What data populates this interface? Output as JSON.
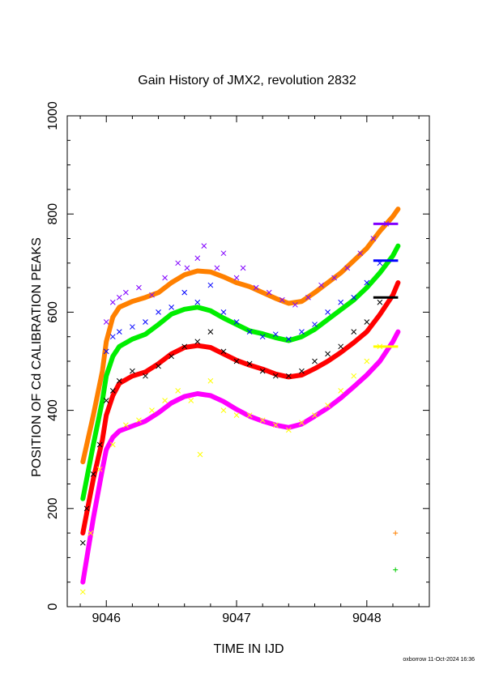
{
  "chart_data": {
    "type": "scatter",
    "title": "Gain History of JMX2, revolution 2832",
    "xlabel": "TIME IN IJD",
    "ylabel": "POSITION OF Cd CALIBRATION PEAKS",
    "xlim": [
      9045.7,
      9048.48
    ],
    "ylim": [
      0,
      1000
    ],
    "xticks": [
      9046,
      9047,
      9048
    ],
    "yticks": [
      0,
      200,
      400,
      600,
      800,
      1000
    ],
    "grid": false,
    "footer": "oxborrow 11-Oct-2024 16:36",
    "series": [
      {
        "color": "#ff8000",
        "marker": "line",
        "points": [
          [
            9045.82,
            295
          ],
          [
            9045.9,
            390
          ],
          [
            9045.97,
            480
          ],
          [
            9046.0,
            540
          ],
          [
            9046.05,
            590
          ],
          [
            9046.1,
            610
          ],
          [
            9046.2,
            622
          ],
          [
            9046.3,
            630
          ],
          [
            9046.4,
            640
          ],
          [
            9046.5,
            660
          ],
          [
            9046.6,
            676
          ],
          [
            9046.7,
            684
          ],
          [
            9046.8,
            682
          ],
          [
            9046.9,
            672
          ],
          [
            9047.0,
            660
          ],
          [
            9047.1,
            652
          ],
          [
            9047.2,
            640
          ],
          [
            9047.3,
            628
          ],
          [
            9047.4,
            618
          ],
          [
            9047.5,
            622
          ],
          [
            9047.6,
            640
          ],
          [
            9047.7,
            660
          ],
          [
            9047.8,
            680
          ],
          [
            9047.9,
            705
          ],
          [
            9048.0,
            730
          ],
          [
            9048.1,
            765
          ],
          [
            9048.2,
            795
          ],
          [
            9048.24,
            810
          ]
        ]
      },
      {
        "color": "#00ee00",
        "marker": "line",
        "points": [
          [
            9045.82,
            220
          ],
          [
            9045.9,
            330
          ],
          [
            9045.97,
            420
          ],
          [
            9046.0,
            470
          ],
          [
            9046.05,
            510
          ],
          [
            9046.1,
            530
          ],
          [
            9046.2,
            545
          ],
          [
            9046.3,
            555
          ],
          [
            9046.4,
            575
          ],
          [
            9046.5,
            596
          ],
          [
            9046.6,
            606
          ],
          [
            9046.7,
            610
          ],
          [
            9046.8,
            603
          ],
          [
            9046.9,
            588
          ],
          [
            9047.0,
            575
          ],
          [
            9047.1,
            562
          ],
          [
            9047.2,
            556
          ],
          [
            9047.3,
            548
          ],
          [
            9047.4,
            542
          ],
          [
            9047.5,
            550
          ],
          [
            9047.6,
            565
          ],
          [
            9047.7,
            585
          ],
          [
            9047.8,
            605
          ],
          [
            9047.9,
            625
          ],
          [
            9048.0,
            650
          ],
          [
            9048.1,
            680
          ],
          [
            9048.2,
            715
          ],
          [
            9048.24,
            735
          ]
        ]
      },
      {
        "color": "#ff0000",
        "marker": "line",
        "points": [
          [
            9045.82,
            150
          ],
          [
            9045.9,
            260
          ],
          [
            9045.97,
            340
          ],
          [
            9046.0,
            390
          ],
          [
            9046.05,
            430
          ],
          [
            9046.1,
            455
          ],
          [
            9046.2,
            470
          ],
          [
            9046.3,
            478
          ],
          [
            9046.4,
            495
          ],
          [
            9046.5,
            515
          ],
          [
            9046.6,
            528
          ],
          [
            9046.7,
            532
          ],
          [
            9046.8,
            528
          ],
          [
            9046.9,
            515
          ],
          [
            9047.0,
            502
          ],
          [
            9047.1,
            492
          ],
          [
            9047.2,
            484
          ],
          [
            9047.3,
            474
          ],
          [
            9047.4,
            468
          ],
          [
            9047.5,
            472
          ],
          [
            9047.6,
            485
          ],
          [
            9047.7,
            500
          ],
          [
            9047.8,
            518
          ],
          [
            9047.9,
            538
          ],
          [
            9048.0,
            560
          ],
          [
            9048.1,
            595
          ],
          [
            9048.2,
            635
          ],
          [
            9048.24,
            660
          ]
        ]
      },
      {
        "color": "#ff00ff",
        "marker": "line",
        "points": [
          [
            9045.82,
            50
          ],
          [
            9045.9,
            180
          ],
          [
            9045.97,
            280
          ],
          [
            9046.0,
            320
          ],
          [
            9046.05,
            345
          ],
          [
            9046.1,
            358
          ],
          [
            9046.2,
            368
          ],
          [
            9046.3,
            378
          ],
          [
            9046.4,
            395
          ],
          [
            9046.5,
            415
          ],
          [
            9046.6,
            428
          ],
          [
            9046.7,
            434
          ],
          [
            9046.8,
            430
          ],
          [
            9046.9,
            418
          ],
          [
            9047.0,
            402
          ],
          [
            9047.1,
            388
          ],
          [
            9047.2,
            378
          ],
          [
            9047.3,
            370
          ],
          [
            9047.4,
            365
          ],
          [
            9047.5,
            372
          ],
          [
            9047.6,
            388
          ],
          [
            9047.7,
            405
          ],
          [
            9047.8,
            425
          ],
          [
            9047.9,
            448
          ],
          [
            9048.0,
            472
          ],
          [
            9048.1,
            500
          ],
          [
            9048.2,
            540
          ],
          [
            9048.24,
            560
          ]
        ]
      },
      {
        "color": "#8000ff",
        "marker": "x",
        "points": [
          [
            9046.0,
            580
          ],
          [
            9046.05,
            620
          ],
          [
            9046.1,
            630
          ],
          [
            9046.15,
            640
          ],
          [
            9046.25,
            650
          ],
          [
            9046.35,
            635
          ],
          [
            9046.45,
            670
          ],
          [
            9046.55,
            700
          ],
          [
            9046.62,
            690
          ],
          [
            9046.7,
            710
          ],
          [
            9046.75,
            735
          ],
          [
            9046.85,
            690
          ],
          [
            9046.9,
            720
          ],
          [
            9047.0,
            670
          ],
          [
            9047.05,
            690
          ],
          [
            9047.15,
            650
          ],
          [
            9047.25,
            640
          ],
          [
            9047.35,
            625
          ],
          [
            9047.45,
            615
          ],
          [
            9047.55,
            630
          ],
          [
            9047.65,
            655
          ],
          [
            9047.75,
            670
          ],
          [
            9047.85,
            690
          ],
          [
            9047.95,
            720
          ],
          [
            9048.05,
            750
          ],
          [
            9048.15,
            780
          ]
        ]
      },
      {
        "color": "#0000ff",
        "marker": "x",
        "points": [
          [
            9046.0,
            520
          ],
          [
            9046.05,
            550
          ],
          [
            9046.1,
            560
          ],
          [
            9046.2,
            570
          ],
          [
            9046.3,
            580
          ],
          [
            9046.4,
            600
          ],
          [
            9046.5,
            610
          ],
          [
            9046.6,
            640
          ],
          [
            9046.7,
            620
          ],
          [
            9046.8,
            655
          ],
          [
            9046.9,
            600
          ],
          [
            9047.0,
            580
          ],
          [
            9047.1,
            560
          ],
          [
            9047.2,
            550
          ],
          [
            9047.3,
            555
          ],
          [
            9047.4,
            545
          ],
          [
            9047.5,
            560
          ],
          [
            9047.6,
            575
          ],
          [
            9047.7,
            600
          ],
          [
            9047.8,
            620
          ],
          [
            9047.9,
            630
          ],
          [
            9048.0,
            660
          ],
          [
            9048.1,
            700
          ]
        ]
      },
      {
        "color": "#000000",
        "marker": "x",
        "points": [
          [
            9045.82,
            130
          ],
          [
            9045.85,
            200
          ],
          [
            9045.9,
            270
          ],
          [
            9045.95,
            330
          ],
          [
            9046.0,
            420
          ],
          [
            9046.05,
            440
          ],
          [
            9046.1,
            460
          ],
          [
            9046.2,
            480
          ],
          [
            9046.3,
            470
          ],
          [
            9046.4,
            490
          ],
          [
            9046.5,
            510
          ],
          [
            9046.6,
            530
          ],
          [
            9046.7,
            540
          ],
          [
            9046.8,
            560
          ],
          [
            9046.9,
            520
          ],
          [
            9047.0,
            500
          ],
          [
            9047.1,
            495
          ],
          [
            9047.2,
            480
          ],
          [
            9047.3,
            470
          ],
          [
            9047.4,
            470
          ],
          [
            9047.5,
            480
          ],
          [
            9047.6,
            500
          ],
          [
            9047.7,
            515
          ],
          [
            9047.8,
            530
          ],
          [
            9047.9,
            560
          ],
          [
            9048.0,
            580
          ],
          [
            9048.1,
            620
          ]
        ]
      },
      {
        "color": "#ffff00",
        "marker": "x",
        "points": [
          [
            9045.82,
            30
          ],
          [
            9045.88,
            150
          ],
          [
            9045.95,
            280
          ],
          [
            9046.05,
            330
          ],
          [
            9046.15,
            370
          ],
          [
            9046.25,
            380
          ],
          [
            9046.35,
            400
          ],
          [
            9046.45,
            420
          ],
          [
            9046.55,
            440
          ],
          [
            9046.65,
            420
          ],
          [
            9046.72,
            310
          ],
          [
            9046.8,
            460
          ],
          [
            9046.9,
            400
          ],
          [
            9047.0,
            390
          ],
          [
            9047.1,
            390
          ],
          [
            9047.2,
            380
          ],
          [
            9047.3,
            370
          ],
          [
            9047.4,
            360
          ],
          [
            9047.5,
            375
          ],
          [
            9047.6,
            390
          ],
          [
            9047.7,
            410
          ],
          [
            9047.8,
            440
          ],
          [
            9047.9,
            470
          ],
          [
            9048.0,
            500
          ],
          [
            9048.1,
            530
          ]
        ]
      },
      {
        "color": "#ff8000",
        "marker": "+",
        "points": [
          [
            9048.22,
            150
          ]
        ]
      },
      {
        "color": "#00cc00",
        "marker": "+",
        "points": [
          [
            9048.22,
            75
          ]
        ]
      }
    ],
    "level_marks": [
      {
        "color": "#8000ff",
        "y": 780
      },
      {
        "color": "#0000ff",
        "y": 705
      },
      {
        "color": "#000000",
        "y": 630
      },
      {
        "color": "#ffff00",
        "y": 530
      }
    ]
  }
}
